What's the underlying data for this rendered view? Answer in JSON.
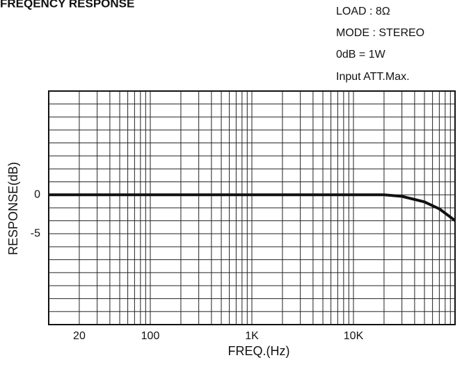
{
  "chart_data": {
    "type": "line",
    "title": "FREQENCY RESPONSE",
    "annotations": [
      "LOAD : 8Ω",
      "MODE : STEREO",
      "0dB = 1W",
      "Input ATT.Max."
    ],
    "x_label": "FREQ.(Hz)",
    "y_label": "RESPONSE(dB)",
    "log_x": true,
    "xlim": [
      10,
      100000
    ],
    "xticks": [
      20,
      100,
      {
        "value": 1000,
        "label": "1K"
      },
      {
        "value": 10000,
        "label": "10K"
      }
    ],
    "xgrid": [
      20,
      30,
      40,
      50,
      60,
      70,
      80,
      90,
      100,
      200,
      300,
      400,
      500,
      600,
      700,
      800,
      900,
      1000,
      2000,
      3000,
      4000,
      5000,
      6000,
      7000,
      8000,
      9000,
      10000,
      20000,
      30000,
      40000,
      50000,
      60000,
      70000,
      80000,
      90000
    ],
    "ylim": [
      -16.67,
      13.33
    ],
    "yticks": [
      0,
      -5
    ],
    "ygrid": [
      11.67,
      10,
      8.33,
      6.67,
      5,
      3.33,
      1.67,
      0,
      -1.67,
      -3.33,
      -5,
      -6.67,
      -8.33,
      -10,
      -11.67,
      -13.33,
      -15
    ],
    "series": [
      {
        "name": "response",
        "color": "#111111",
        "x": [
          10,
          1000,
          20000,
          30000,
          50000,
          70000,
          100000
        ],
        "values": [
          0,
          0,
          0,
          -0.2,
          -0.9,
          -1.8,
          -3.3
        ]
      }
    ]
  }
}
